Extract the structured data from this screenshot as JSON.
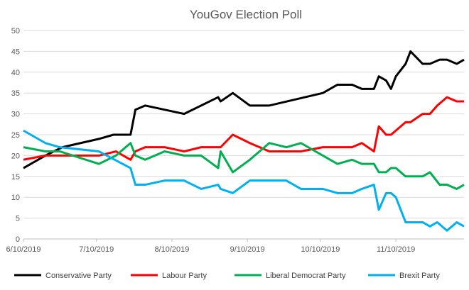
{
  "chart_data": {
    "type": "line",
    "title": "YouGov Election Poll",
    "xlabel": "",
    "ylabel": "",
    "x_unit": "days since 6/10/2019",
    "xlim": [
      0,
      181
    ],
    "ylim": [
      0,
      50
    ],
    "yticks": [
      0,
      5,
      10,
      15,
      20,
      25,
      30,
      35,
      40,
      45,
      50
    ],
    "xticks": [
      {
        "day": 0,
        "label": "6/10/2019"
      },
      {
        "day": 30,
        "label": "7/10/2019"
      },
      {
        "day": 61,
        "label": "8/10/2019"
      },
      {
        "day": 92,
        "label": "9/10/2019"
      },
      {
        "day": 122,
        "label": "10/10/2019"
      },
      {
        "day": 153,
        "label": "11/10/2019"
      }
    ],
    "grid": true,
    "legend_position": "bottom",
    "series": [
      {
        "name": "Conservative Party",
        "color": "#000000",
        "x": [
          0,
          9,
          16,
          31,
          37,
          44,
          46,
          50,
          66,
          80,
          81,
          86,
          93,
          101,
          123,
          129,
          135,
          139,
          144,
          146,
          149,
          151,
          153,
          157,
          159,
          164,
          167,
          171,
          174,
          178,
          181
        ],
        "y": [
          17,
          20,
          22,
          24,
          25,
          25,
          31,
          32,
          30,
          34,
          33,
          35,
          32,
          32,
          35,
          37,
          37,
          36,
          36,
          39,
          38,
          36,
          39,
          42,
          45,
          42,
          42,
          43,
          43,
          42,
          43
        ]
      },
      {
        "name": "Labour Party",
        "color": "#ff0000",
        "x": [
          0,
          9,
          31,
          38,
          44,
          46,
          50,
          58,
          66,
          73,
          81,
          86,
          93,
          101,
          114,
          123,
          135,
          139,
          144,
          146,
          149,
          151,
          157,
          159,
          164,
          167,
          170,
          174,
          178,
          181
        ],
        "y": [
          19,
          20,
          20,
          21,
          19,
          21,
          22,
          22,
          21,
          22,
          22,
          25,
          23,
          21,
          21,
          22,
          22,
          23,
          21,
          27,
          25,
          25,
          28,
          28,
          30,
          30,
          32,
          34,
          33,
          33
        ]
      },
      {
        "name": "Liberal Democrat Party",
        "color": "#00b050",
        "x": [
          0,
          9,
          15,
          31,
          38,
          44,
          46,
          50,
          58,
          66,
          73,
          80,
          81,
          86,
          93,
          101,
          108,
          114,
          123,
          129,
          135,
          139,
          144,
          146,
          149,
          151,
          153,
          157,
          164,
          167,
          171,
          174,
          178,
          181
        ],
        "y": [
          22,
          21,
          21,
          18,
          20,
          23,
          20,
          19,
          21,
          20,
          20,
          17,
          21,
          16,
          19,
          23,
          22,
          23,
          20,
          18,
          19,
          18,
          18,
          16,
          16,
          17,
          17,
          15,
          15,
          16,
          13,
          13,
          12,
          13
        ]
      },
      {
        "name": "Brexit Party",
        "color": "#00b0f0",
        "x": [
          0,
          9,
          15,
          31,
          44,
          46,
          50,
          58,
          66,
          73,
          80,
          81,
          86,
          93,
          108,
          114,
          123,
          129,
          135,
          139,
          144,
          146,
          149,
          151,
          153,
          157,
          164,
          167,
          170,
          174,
          178,
          181
        ],
        "y": [
          26,
          23,
          22,
          21,
          17,
          13,
          13,
          14,
          14,
          12,
          13,
          12,
          11,
          14,
          14,
          12,
          12,
          11,
          11,
          12,
          13,
          7,
          11,
          11,
          10,
          4,
          4,
          3,
          4,
          2,
          4,
          3
        ]
      }
    ]
  }
}
